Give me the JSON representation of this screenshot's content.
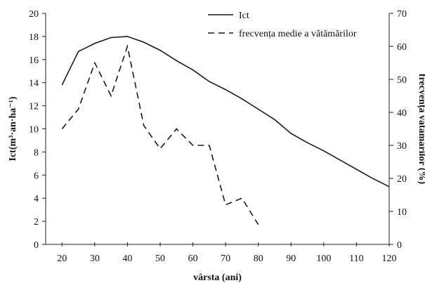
{
  "chart_data": {
    "type": "line",
    "xlabel": "vârsta (ani)",
    "ylabel": "Ict(m³·an·ha⁻¹)",
    "y2label": "frecvența vătămărilor (%)",
    "xlim": [
      15,
      120
    ],
    "ylim": [
      0,
      20
    ],
    "y2lim": [
      0,
      70
    ],
    "xticks": [
      20,
      30,
      40,
      50,
      60,
      70,
      80,
      90,
      100,
      110,
      120
    ],
    "yticks": [
      0,
      2,
      4,
      6,
      8,
      10,
      12,
      14,
      16,
      18,
      20
    ],
    "y2ticks": [
      0,
      10,
      20,
      30,
      40,
      50,
      60,
      70
    ],
    "legend_position": "top-right",
    "series": [
      {
        "name": "Ict",
        "axis": "left",
        "style": "solid",
        "x": [
          20,
          25,
          30,
          35,
          40,
          45,
          50,
          55,
          60,
          65,
          70,
          75,
          80,
          85,
          90,
          95,
          100,
          105,
          110,
          115,
          120
        ],
        "y": [
          13.8,
          16.7,
          17.4,
          17.9,
          18.0,
          17.5,
          16.8,
          15.9,
          15.1,
          14.1,
          13.4,
          12.6,
          11.7,
          10.8,
          9.6,
          8.8,
          8.1,
          7.3,
          6.5,
          5.7,
          5.0
        ]
      },
      {
        "name": "frecvența medie a vătămărilor",
        "axis": "right",
        "style": "dashed",
        "x": [
          20,
          25,
          30,
          35,
          40,
          45,
          50,
          55,
          60,
          65,
          70,
          75,
          80
        ],
        "y": [
          35,
          41,
          55,
          45,
          60,
          36,
          29,
          35,
          30,
          30,
          12,
          14,
          6
        ]
      }
    ]
  }
}
